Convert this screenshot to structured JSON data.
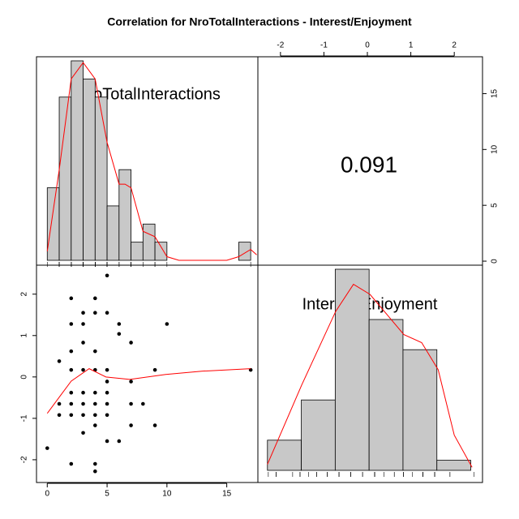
{
  "chart_data": {
    "type": "pairs",
    "title": "Correlation  for NroTotalInteractions - Interest/Enjoyment",
    "variables": [
      "NroTotalInteractions",
      "Interest/Enjoyment"
    ],
    "correlation": 0.091,
    "x": [
      0,
      1,
      1,
      1,
      2,
      2,
      2,
      2,
      2,
      2,
      2,
      2,
      3,
      3,
      3,
      3,
      3,
      3,
      3,
      3,
      4,
      4,
      4,
      4,
      4,
      4,
      4,
      4,
      4,
      4,
      5,
      5,
      5,
      5,
      5,
      5,
      5,
      5,
      6,
      6,
      6,
      7,
      7,
      7,
      7,
      8,
      9,
      9,
      10,
      17
    ],
    "y": [
      -1.72,
      0.38,
      -0.65,
      -0.92,
      1.9,
      1.28,
      0.62,
      0.17,
      -0.38,
      -0.65,
      -0.92,
      -2.1,
      1.55,
      1.28,
      0.83,
      0.17,
      -0.38,
      -0.65,
      -0.92,
      -1.35,
      1.9,
      1.55,
      0.62,
      0.17,
      -0.38,
      -0.65,
      -0.92,
      -1.17,
      -2.1,
      -2.28,
      2.45,
      1.55,
      0.17,
      -0.11,
      -0.38,
      -0.65,
      -0.92,
      -1.55,
      1.28,
      1.04,
      -1.55,
      0.83,
      -0.11,
      -0.65,
      -1.17,
      -0.65,
      0.17,
      -1.17,
      1.28,
      0.17
    ],
    "xlim": [
      -0.9,
      17.6
    ],
    "xticks": [
      0,
      5,
      10,
      15
    ],
    "ylim": [
      -2.55,
      2.7
    ],
    "yticks": [
      -2,
      -1,
      0,
      1,
      2
    ],
    "x2lim": [
      -2.52,
      2.65
    ],
    "x2ticks": [
      -2,
      -1,
      0,
      1,
      2
    ],
    "y2lim": [
      -0.36,
      18.3
    ],
    "y2ticks": [
      0,
      5,
      10,
      15
    ],
    "histograms": [
      {
        "bins": [
          0,
          1,
          2,
          3,
          4,
          5,
          6,
          7,
          8,
          9,
          10,
          11,
          12,
          13,
          14,
          15,
          16,
          17
        ],
        "counts": [
          4,
          9,
          11,
          10,
          9,
          3,
          5,
          1,
          2,
          1,
          0,
          0,
          0,
          0,
          0,
          0,
          1
        ]
      },
      {
        "bins": [
          -2.3,
          -1.52,
          -0.74,
          0.04,
          0.82,
          1.6,
          2.38
        ],
        "counts": [
          3,
          7,
          20,
          15,
          12,
          1
        ]
      }
    ],
    "densities": [
      {
        "x": [
          0,
          1,
          2,
          3,
          4,
          5,
          6,
          6.5,
          7,
          8,
          9,
          10,
          11,
          15,
          16,
          17,
          17.5
        ],
        "y": [
          0.5,
          5,
          10,
          10.9,
          10,
          6.5,
          4.2,
          4.2,
          4,
          1.6,
          1.3,
          0.2,
          0,
          0,
          0.2,
          0.6,
          0.3
        ]
      },
      {
        "x": [
          -2.3,
          -1.51,
          -0.73,
          -0.32,
          0.06,
          0.84,
          1.25,
          1.63,
          2.0,
          2.41
        ],
        "y": [
          0.6,
          8.5,
          15.8,
          18.5,
          17.5,
          13.5,
          12.7,
          10,
          3.5,
          0.3
        ]
      }
    ],
    "smooth": {
      "x": [
        0,
        1,
        2,
        3.5,
        4.9,
        6.9,
        9.9,
        13,
        17
      ],
      "y": [
        -0.88,
        -0.49,
        -0.1,
        0.2,
        0,
        -0.06,
        0.06,
        0.14,
        0.2
      ]
    },
    "bar_color": "#c8c8c8",
    "line_color": "#ff0000"
  }
}
